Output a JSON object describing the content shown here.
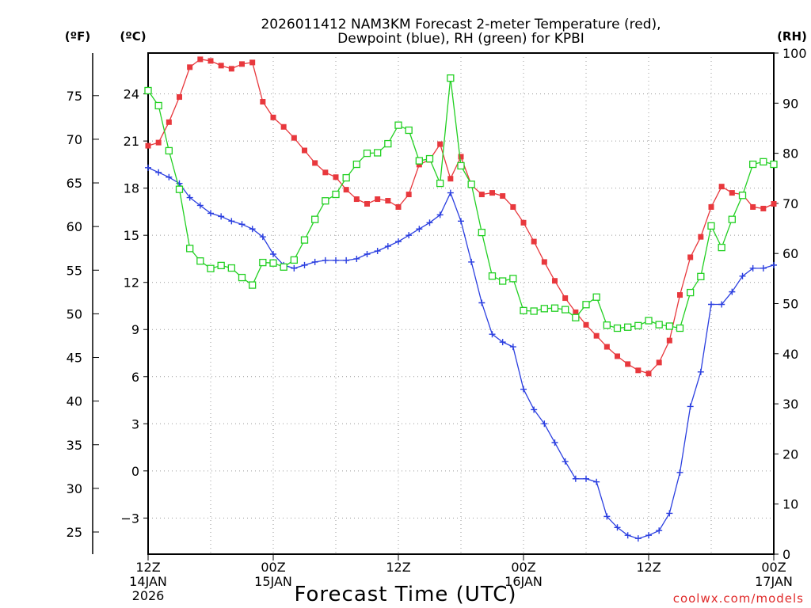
{
  "chart_data": {
    "type": "line",
    "title": [
      "2026011412 NAM3KM Forecast 2-meter Temperature (red),",
      "Dewpoint (blue), RH (green) for KPBI"
    ],
    "xlabel": "Forecast Time (UTC)",
    "credit": "coolwx.com/models",
    "units": {
      "fahrenheit": "(ºF)",
      "celsius": "(ºC)",
      "rh": "(RH)"
    },
    "x_range_hours": [
      0,
      60
    ],
    "x_ticks": [
      {
        "hour": 0,
        "lines": [
          "12Z",
          "14JAN",
          "2026"
        ]
      },
      {
        "hour": 12,
        "lines": [
          "00Z",
          "15JAN"
        ]
      },
      {
        "hour": 24,
        "lines": [
          "12Z"
        ]
      },
      {
        "hour": 36,
        "lines": [
          "00Z",
          "16JAN"
        ]
      },
      {
        "hour": 48,
        "lines": [
          "12Z"
        ]
      },
      {
        "hour": 60,
        "lines": [
          "00Z",
          "17JAN"
        ]
      }
    ],
    "celsius_axis": {
      "range": [
        -5.3,
        26.6
      ],
      "ticks": [
        24,
        21,
        18,
        15,
        12,
        9,
        6,
        3,
        0,
        -3
      ]
    },
    "fahrenheit_axis": {
      "ticks": [
        75,
        70,
        65,
        60,
        55,
        50,
        45,
        40,
        35,
        30,
        25
      ]
    },
    "rh_axis": {
      "range": [
        0,
        100
      ],
      "ticks": [
        100,
        90,
        80,
        70,
        60,
        50,
        40,
        30,
        20,
        10,
        0
      ]
    },
    "series": [
      {
        "name": "2-meter Temperature",
        "unit": "C",
        "color": "#e8383d",
        "marker": "filled-square",
        "values": [
          20.7,
          20.9,
          22.2,
          23.8,
          25.7,
          26.2,
          26.1,
          25.8,
          25.6,
          25.9,
          26.0,
          23.5,
          22.5,
          21.9,
          21.2,
          20.4,
          19.6,
          19.0,
          18.7,
          17.9,
          17.3,
          17.0,
          17.3,
          17.2,
          16.8,
          17.6,
          19.5,
          19.8,
          20.8,
          18.6,
          20.0,
          18.2,
          17.6,
          17.7,
          17.5,
          16.8,
          15.8,
          14.6,
          13.3,
          12.1,
          11.0,
          10.1,
          9.3,
          8.6,
          7.9,
          7.3,
          6.8,
          6.4,
          6.2,
          6.9,
          8.3,
          11.2,
          13.6,
          14.9,
          16.8,
          18.1,
          17.7,
          17.6,
          16.8,
          16.7,
          17.0
        ]
      },
      {
        "name": "Dewpoint",
        "unit": "C",
        "color": "#2b3fe0",
        "marker": "plus",
        "values": [
          19.3,
          19.0,
          18.7,
          18.3,
          17.4,
          16.9,
          16.4,
          16.2,
          15.9,
          15.7,
          15.4,
          14.9,
          13.8,
          13.1,
          12.9,
          13.1,
          13.3,
          13.4,
          13.4,
          13.4,
          13.5,
          13.8,
          14.0,
          14.3,
          14.6,
          15.0,
          15.4,
          15.8,
          16.3,
          17.7,
          15.9,
          13.3,
          10.7,
          8.7,
          8.2,
          7.9,
          5.2,
          3.9,
          3.0,
          1.8,
          0.6,
          -0.5,
          -0.5,
          -0.7,
          -2.9,
          -3.6,
          -4.1,
          -4.3,
          -4.1,
          -3.8,
          -2.7,
          -0.1,
          4.1,
          6.3,
          10.6,
          10.6,
          11.4,
          12.4,
          12.9,
          12.9,
          13.1
        ]
      },
      {
        "name": "RH",
        "unit": "%",
        "color": "#22d022",
        "marker": "open-square",
        "values": [
          92.5,
          89.5,
          80.5,
          72.8,
          61.0,
          58.5,
          57.0,
          57.6,
          57.1,
          55.2,
          53.7,
          58.2,
          58.1,
          57.3,
          58.7,
          62.7,
          66.8,
          70.5,
          71.8,
          75.1,
          77.8,
          80.0,
          80.1,
          81.9,
          85.6,
          84.6,
          78.5,
          78.9,
          74.0,
          95.0,
          77.5,
          73.8,
          64.2,
          55.5,
          54.5,
          55.0,
          48.6,
          48.5,
          49.0,
          49.1,
          48.8,
          47.2,
          49.8,
          51.3,
          45.7,
          45.1,
          45.3,
          45.6,
          46.6,
          45.8,
          45.5,
          45.1,
          52.2,
          55.4,
          65.5,
          61.2,
          66.8,
          71.6,
          77.8,
          78.3,
          77.8
        ]
      }
    ]
  }
}
